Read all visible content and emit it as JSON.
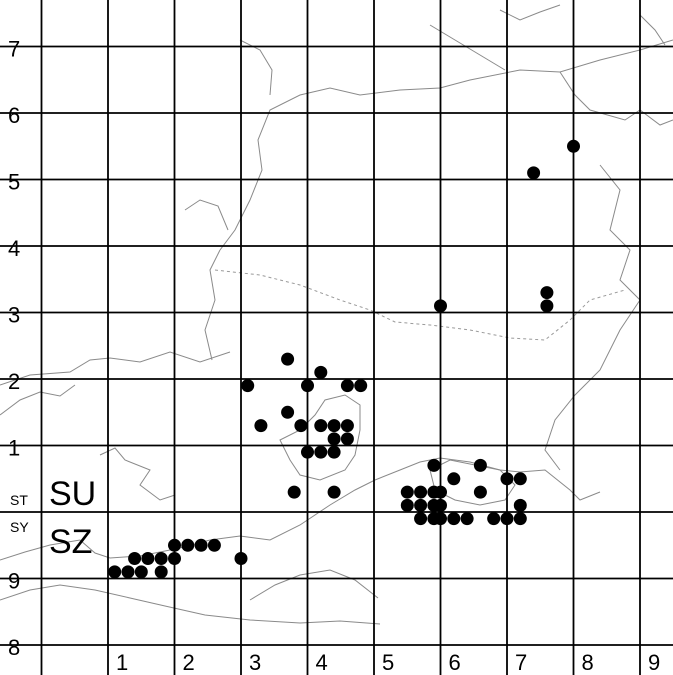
{
  "map": {
    "x_ticks": [
      "1",
      "2",
      "3",
      "4",
      "5",
      "6",
      "7",
      "8",
      "9"
    ],
    "y_ticks_top": [
      "7",
      "6",
      "5",
      "4",
      "3",
      "2",
      "1"
    ],
    "y_ticks_bottom": [
      "9",
      "8"
    ],
    "squares": {
      "upper_small": "ST",
      "upper_big": "SU",
      "lower_small": "SY",
      "lower_big": "SZ"
    },
    "colors": {
      "grid": "#000000",
      "coast": "#8a8a8a",
      "dot": "#000000"
    },
    "records": [
      {
        "x": 8.0,
        "y": 5.5
      },
      {
        "x": 7.4,
        "y": 5.1
      },
      {
        "x": 7.6,
        "y": 3.3
      },
      {
        "x": 7.6,
        "y": 3.1
      },
      {
        "x": 6.0,
        "y": 3.1
      },
      {
        "x": 3.7,
        "y": 2.3
      },
      {
        "x": 3.1,
        "y": 1.9
      },
      {
        "x": 4.0,
        "y": 1.9
      },
      {
        "x": 4.2,
        "y": 2.1
      },
      {
        "x": 4.6,
        "y": 1.9
      },
      {
        "x": 4.8,
        "y": 1.9
      },
      {
        "x": 3.7,
        "y": 1.5
      },
      {
        "x": 3.3,
        "y": 1.3
      },
      {
        "x": 3.9,
        "y": 1.3
      },
      {
        "x": 4.2,
        "y": 1.3
      },
      {
        "x": 4.4,
        "y": 1.3
      },
      {
        "x": 4.6,
        "y": 1.3
      },
      {
        "x": 4.4,
        "y": 1.1
      },
      {
        "x": 4.6,
        "y": 1.1
      },
      {
        "x": 4.0,
        "y": 0.9
      },
      {
        "x": 4.2,
        "y": 0.9
      },
      {
        "x": 4.4,
        "y": 0.9
      },
      {
        "x": 3.8,
        "y": 0.3
      },
      {
        "x": 4.4,
        "y": 0.3
      },
      {
        "x": 5.9,
        "y": 0.7
      },
      {
        "x": 6.6,
        "y": 0.7
      },
      {
        "x": 6.2,
        "y": 0.5
      },
      {
        "x": 7.0,
        "y": 0.5
      },
      {
        "x": 7.2,
        "y": 0.5
      },
      {
        "x": 5.5,
        "y": 0.3
      },
      {
        "x": 5.7,
        "y": 0.3
      },
      {
        "x": 5.9,
        "y": 0.3
      },
      {
        "x": 6.0,
        "y": 0.3
      },
      {
        "x": 6.6,
        "y": 0.3
      },
      {
        "x": 5.5,
        "y": 0.1
      },
      {
        "x": 5.7,
        "y": 0.1
      },
      {
        "x": 5.9,
        "y": 0.1
      },
      {
        "x": 6.0,
        "y": 0.1
      },
      {
        "x": 7.2,
        "y": 0.1
      },
      {
        "x": 5.7,
        "y": -0.1
      },
      {
        "x": 5.9,
        "y": -0.1
      },
      {
        "x": 6.0,
        "y": -0.1
      },
      {
        "x": 6.2,
        "y": -0.1
      },
      {
        "x": 6.4,
        "y": -0.1
      },
      {
        "x": 6.8,
        "y": -0.1
      },
      {
        "x": 7.0,
        "y": -0.1
      },
      {
        "x": 7.2,
        "y": -0.1
      },
      {
        "x": 2.0,
        "y": -0.5
      },
      {
        "x": 2.2,
        "y": -0.5
      },
      {
        "x": 2.4,
        "y": -0.5
      },
      {
        "x": 2.6,
        "y": -0.5
      },
      {
        "x": 1.4,
        "y": -0.7
      },
      {
        "x": 1.6,
        "y": -0.7
      },
      {
        "x": 1.8,
        "y": -0.7
      },
      {
        "x": 2.0,
        "y": -0.7
      },
      {
        "x": 3.0,
        "y": -0.7
      },
      {
        "x": 1.1,
        "y": -0.9
      },
      {
        "x": 1.3,
        "y": -0.9
      },
      {
        "x": 1.5,
        "y": -0.9
      },
      {
        "x": 1.8,
        "y": -0.9
      }
    ]
  }
}
